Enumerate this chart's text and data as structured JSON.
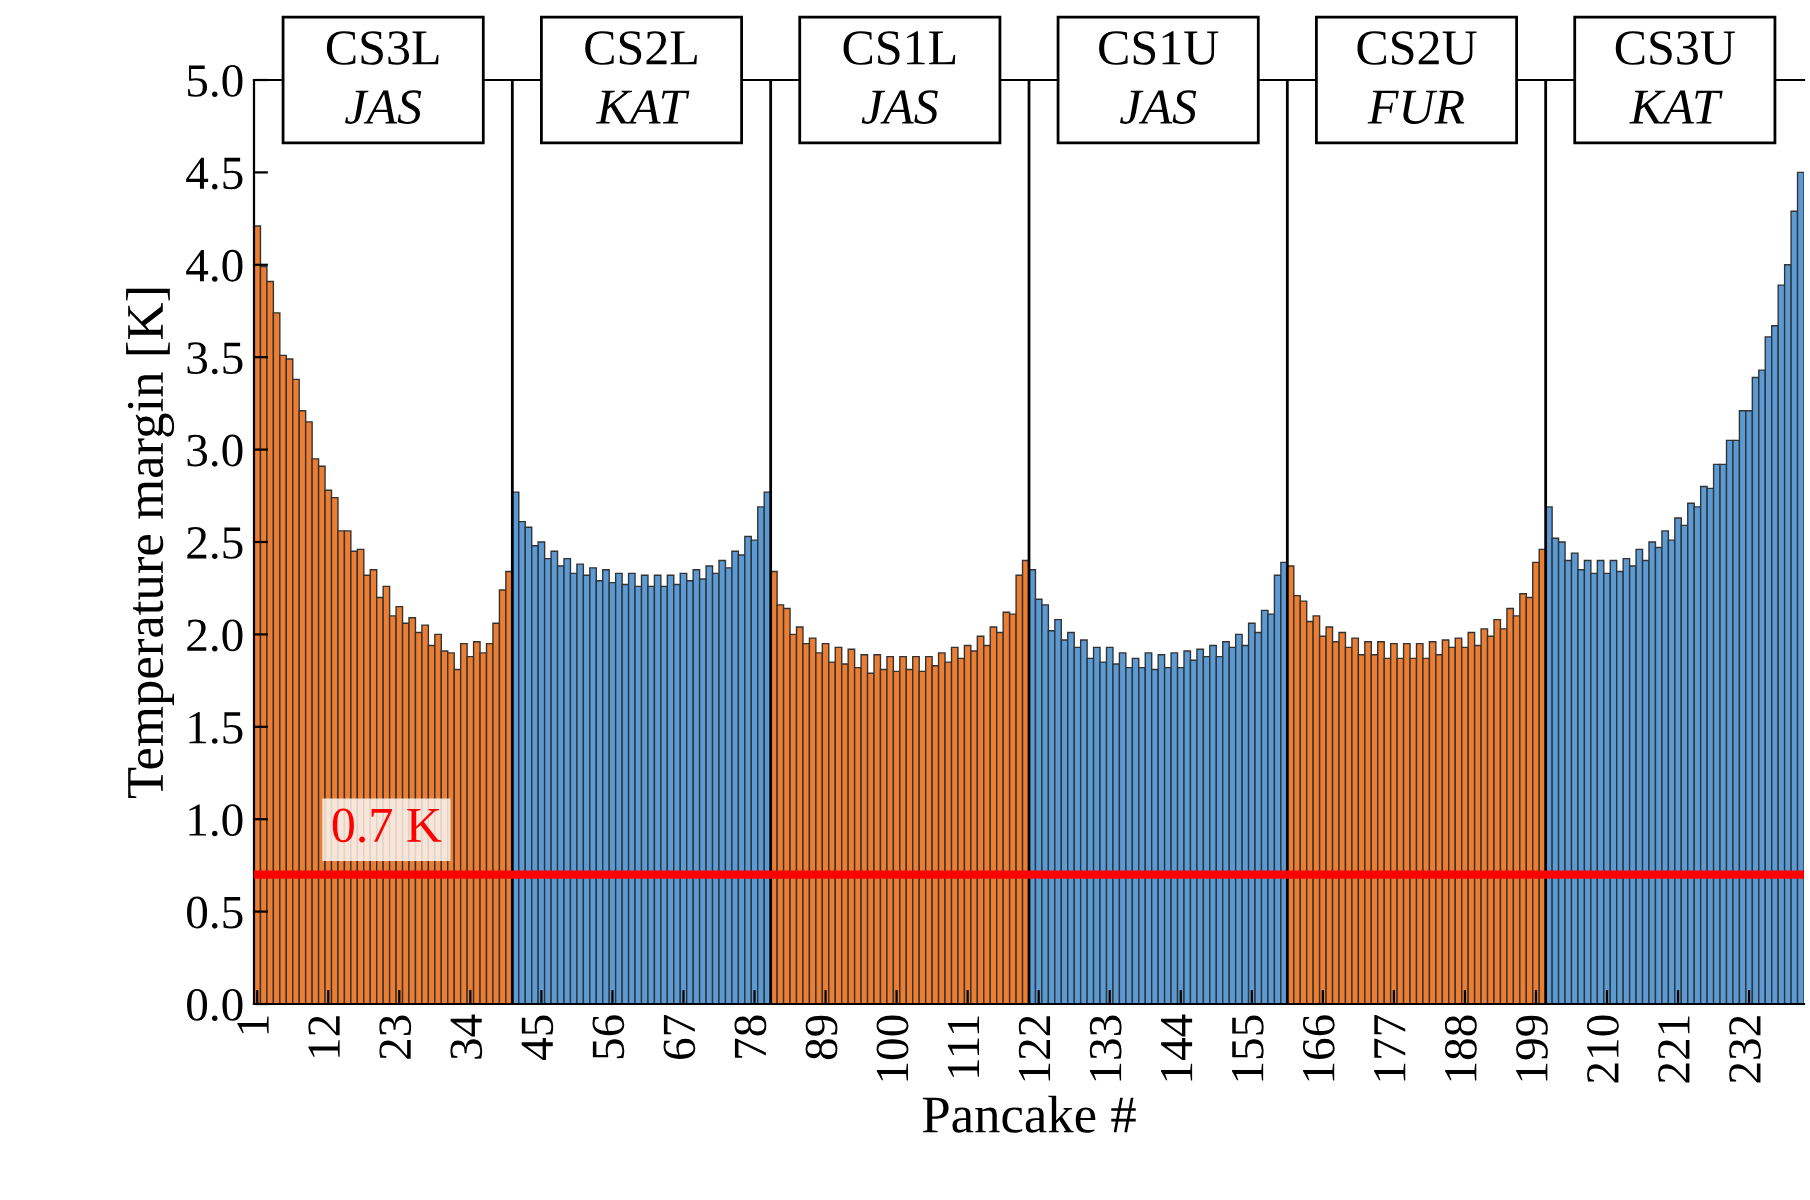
{
  "chart_data": {
    "type": "bar",
    "xlabel": "Pancake #",
    "ylabel": "Temperature margin [K]",
    "categories": [
      "1",
      null,
      null,
      null,
      null,
      null,
      null,
      null,
      null,
      null,
      null,
      "12",
      null,
      null,
      null,
      null,
      null,
      null,
      null,
      null,
      null,
      null,
      "23",
      null,
      null,
      null,
      null,
      null,
      null,
      null,
      null,
      null,
      null,
      "34",
      null,
      null,
      null,
      null,
      null,
      null,
      null,
      null,
      null,
      null,
      "45",
      null,
      null,
      null,
      null,
      null,
      null,
      null,
      null,
      null,
      null,
      "56",
      null,
      null,
      null,
      null,
      null,
      null,
      null,
      null,
      null,
      null,
      "67",
      null,
      null,
      null,
      null,
      null,
      null,
      null,
      null,
      null,
      null,
      "78",
      null,
      null,
      null,
      null,
      null,
      null,
      null,
      null,
      null,
      null,
      "89",
      null,
      null,
      null,
      null,
      null,
      null,
      null,
      null,
      null,
      null,
      "100",
      null,
      null,
      null,
      null,
      null,
      null,
      null,
      null,
      null,
      null,
      "111",
      null,
      null,
      null,
      null,
      null,
      null,
      null,
      null,
      null,
      null,
      "122",
      null,
      null,
      null,
      null,
      null,
      null,
      null,
      null,
      null,
      null,
      "133",
      null,
      null,
      null,
      null,
      null,
      null,
      null,
      null,
      null,
      null,
      "144",
      null,
      null,
      null,
      null,
      null,
      null,
      null,
      null,
      null,
      null,
      "155",
      null,
      null,
      null,
      null,
      null,
      null,
      null,
      null,
      null,
      null,
      "166",
      null,
      null,
      null,
      null,
      null,
      null,
      null,
      null,
      null,
      null,
      "177",
      null,
      null,
      null,
      null,
      null,
      null,
      null,
      null,
      null,
      null,
      "188",
      null,
      null,
      null,
      null,
      null,
      null,
      null,
      null,
      null,
      null,
      "199",
      null,
      null,
      null,
      null,
      null,
      null,
      null,
      null,
      null,
      null,
      "210",
      null,
      null,
      null,
      null,
      null,
      null,
      null,
      null,
      null,
      null,
      "221",
      null,
      null,
      null,
      null,
      null,
      null,
      null,
      null,
      null,
      null,
      "232",
      null,
      null,
      null,
      null,
      null,
      null,
      null,
      null
    ],
    "values": [
      4.21,
      3.99,
      3.91,
      3.74,
      3.51,
      3.49,
      3.38,
      3.21,
      3.15,
      2.95,
      2.91,
      2.78,
      2.74,
      2.56,
      2.56,
      2.45,
      2.46,
      2.32,
      2.35,
      2.2,
      2.26,
      2.1,
      2.15,
      2.06,
      2.09,
      2.01,
      2.05,
      1.94,
      2.0,
      1.91,
      1.9,
      1.81,
      1.95,
      1.88,
      1.96,
      1.9,
      1.95,
      2.06,
      2.24,
      2.34,
      2.77,
      2.61,
      2.58,
      2.48,
      2.5,
      2.41,
      2.45,
      2.37,
      2.41,
      2.33,
      2.38,
      2.32,
      2.36,
      2.29,
      2.35,
      2.28,
      2.33,
      2.27,
      2.33,
      2.26,
      2.32,
      2.26,
      2.32,
      2.26,
      2.32,
      2.27,
      2.33,
      2.29,
      2.35,
      2.3,
      2.37,
      2.33,
      2.4,
      2.36,
      2.45,
      2.43,
      2.53,
      2.51,
      2.69,
      2.77,
      2.34,
      2.16,
      2.14,
      2.0,
      2.04,
      1.95,
      1.98,
      1.9,
      1.95,
      1.85,
      1.93,
      1.84,
      1.92,
      1.82,
      1.89,
      1.79,
      1.89,
      1.81,
      1.88,
      1.8,
      1.88,
      1.81,
      1.88,
      1.8,
      1.88,
      1.83,
      1.9,
      1.85,
      1.93,
      1.87,
      1.94,
      1.91,
      1.99,
      1.94,
      2.04,
      2.01,
      2.12,
      2.11,
      2.32,
      2.4,
      2.35,
      2.19,
      2.16,
      2.02,
      2.08,
      1.97,
      2.01,
      1.93,
      1.97,
      1.87,
      1.93,
      1.85,
      1.93,
      1.84,
      1.9,
      1.82,
      1.87,
      1.82,
      1.9,
      1.81,
      1.89,
      1.82,
      1.9,
      1.82,
      1.91,
      1.86,
      1.92,
      1.88,
      1.94,
      1.88,
      1.96,
      1.93,
      2.0,
      1.94,
      2.06,
      2.01,
      2.13,
      2.11,
      2.32,
      2.39,
      2.37,
      2.21,
      2.18,
      2.07,
      2.1,
      1.99,
      2.04,
      1.96,
      2.01,
      1.93,
      1.98,
      1.89,
      1.96,
      1.89,
      1.96,
      1.87,
      1.95,
      1.87,
      1.95,
      1.87,
      1.95,
      1.87,
      1.96,
      1.89,
      1.97,
      1.93,
      1.98,
      1.93,
      2.01,
      1.94,
      2.03,
      1.99,
      2.08,
      2.03,
      2.14,
      2.1,
      2.22,
      2.2,
      2.39,
      2.46,
      2.69,
      2.52,
      2.5,
      2.4,
      2.44,
      2.35,
      2.4,
      2.33,
      2.4,
      2.33,
      2.4,
      2.34,
      2.41,
      2.37,
      2.46,
      2.4,
      2.5,
      2.47,
      2.56,
      2.51,
      2.63,
      2.59,
      2.71,
      2.69,
      2.8,
      2.79,
      2.92,
      2.92,
      3.05,
      3.05,
      3.21,
      3.21,
      3.39,
      3.43,
      3.61,
      3.67,
      3.89,
      4.0,
      4.29,
      4.5
    ],
    "colors": [
      "#ed7d31",
      "#ed7d31",
      "#ed7d31",
      "#ed7d31",
      "#ed7d31",
      "#ed7d31",
      "#ed7d31",
      "#ed7d31",
      "#ed7d31",
      "#ed7d31",
      "#ed7d31",
      "#ed7d31",
      "#ed7d31",
      "#ed7d31",
      "#ed7d31",
      "#ed7d31",
      "#ed7d31",
      "#ed7d31",
      "#ed7d31",
      "#ed7d31",
      "#ed7d31",
      "#ed7d31",
      "#ed7d31",
      "#ed7d31",
      "#ed7d31",
      "#ed7d31",
      "#ed7d31",
      "#ed7d31",
      "#ed7d31",
      "#ed7d31",
      "#ed7d31",
      "#ed7d31",
      "#ed7d31",
      "#ed7d31",
      "#ed7d31",
      "#ed7d31",
      "#ed7d31",
      "#ed7d31",
      "#ed7d31",
      "#ed7d31",
      "#5b9bd5",
      "#5b9bd5",
      "#5b9bd5",
      "#5b9bd5",
      "#5b9bd5",
      "#5b9bd5",
      "#5b9bd5",
      "#5b9bd5",
      "#5b9bd5",
      "#5b9bd5",
      "#5b9bd5",
      "#5b9bd5",
      "#5b9bd5",
      "#5b9bd5",
      "#5b9bd5",
      "#5b9bd5",
      "#5b9bd5",
      "#5b9bd5",
      "#5b9bd5",
      "#5b9bd5",
      "#5b9bd5",
      "#5b9bd5",
      "#5b9bd5",
      "#5b9bd5",
      "#5b9bd5",
      "#5b9bd5",
      "#5b9bd5",
      "#5b9bd5",
      "#5b9bd5",
      "#5b9bd5",
      "#5b9bd5",
      "#5b9bd5",
      "#5b9bd5",
      "#5b9bd5",
      "#5b9bd5",
      "#5b9bd5",
      "#5b9bd5",
      "#5b9bd5",
      "#5b9bd5",
      "#5b9bd5",
      "#ed7d31",
      "#ed7d31",
      "#ed7d31",
      "#ed7d31",
      "#ed7d31",
      "#ed7d31",
      "#ed7d31",
      "#ed7d31",
      "#ed7d31",
      "#ed7d31",
      "#ed7d31",
      "#ed7d31",
      "#ed7d31",
      "#ed7d31",
      "#ed7d31",
      "#ed7d31",
      "#ed7d31",
      "#ed7d31",
      "#ed7d31",
      "#ed7d31",
      "#ed7d31",
      "#ed7d31",
      "#ed7d31",
      "#ed7d31",
      "#ed7d31",
      "#ed7d31",
      "#ed7d31",
      "#ed7d31",
      "#ed7d31",
      "#ed7d31",
      "#ed7d31",
      "#ed7d31",
      "#ed7d31",
      "#ed7d31",
      "#ed7d31",
      "#ed7d31",
      "#ed7d31",
      "#ed7d31",
      "#ed7d31",
      "#ed7d31",
      "#5b9bd5",
      "#5b9bd5",
      "#5b9bd5",
      "#5b9bd5",
      "#5b9bd5",
      "#5b9bd5",
      "#5b9bd5",
      "#5b9bd5",
      "#5b9bd5",
      "#5b9bd5",
      "#5b9bd5",
      "#5b9bd5",
      "#5b9bd5",
      "#5b9bd5",
      "#5b9bd5",
      "#5b9bd5",
      "#5b9bd5",
      "#5b9bd5",
      "#5b9bd5",
      "#5b9bd5",
      "#5b9bd5",
      "#5b9bd5",
      "#5b9bd5",
      "#5b9bd5",
      "#5b9bd5",
      "#5b9bd5",
      "#5b9bd5",
      "#5b9bd5",
      "#5b9bd5",
      "#5b9bd5",
      "#5b9bd5",
      "#5b9bd5",
      "#5b9bd5",
      "#5b9bd5",
      "#5b9bd5",
      "#5b9bd5",
      "#5b9bd5",
      "#5b9bd5",
      "#5b9bd5",
      "#5b9bd5",
      "#ed7d31",
      "#ed7d31",
      "#ed7d31",
      "#ed7d31",
      "#ed7d31",
      "#ed7d31",
      "#ed7d31",
      "#ed7d31",
      "#ed7d31",
      "#ed7d31",
      "#ed7d31",
      "#ed7d31",
      "#ed7d31",
      "#ed7d31",
      "#ed7d31",
      "#ed7d31",
      "#ed7d31",
      "#ed7d31",
      "#ed7d31",
      "#ed7d31",
      "#ed7d31",
      "#ed7d31",
      "#ed7d31",
      "#ed7d31",
      "#ed7d31",
      "#ed7d31",
      "#ed7d31",
      "#ed7d31",
      "#ed7d31",
      "#ed7d31",
      "#ed7d31",
      "#ed7d31",
      "#ed7d31",
      "#ed7d31",
      "#ed7d31",
      "#ed7d31",
      "#ed7d31",
      "#ed7d31",
      "#ed7d31",
      "#ed7d31",
      "#5b9bd5",
      "#5b9bd5",
      "#5b9bd5",
      "#5b9bd5",
      "#5b9bd5",
      "#5b9bd5",
      "#5b9bd5",
      "#5b9bd5",
      "#5b9bd5",
      "#5b9bd5",
      "#5b9bd5",
      "#5b9bd5",
      "#5b9bd5",
      "#5b9bd5",
      "#5b9bd5",
      "#5b9bd5",
      "#5b9bd5",
      "#5b9bd5",
      "#5b9bd5",
      "#5b9bd5",
      "#5b9bd5",
      "#5b9bd5",
      "#5b9bd5",
      "#5b9bd5",
      "#5b9bd5",
      "#5b9bd5",
      "#5b9bd5",
      "#5b9bd5",
      "#5b9bd5",
      "#5b9bd5",
      "#5b9bd5",
      "#5b9bd5",
      "#5b9bd5",
      "#5b9bd5",
      "#5b9bd5",
      "#5b9bd5",
      "#5b9bd5",
      "#5b9bd5",
      "#5b9bd5",
      "#5b9bd5"
    ],
    "ylim": [
      0,
      5
    ],
    "yticks": [
      {
        "value": 0,
        "label": "0.0"
      },
      0.5,
      {
        "value": 1,
        "label": "1.0"
      },
      1.5,
      {
        "value": 2,
        "label": "2.0"
      },
      2.5,
      {
        "value": 3,
        "label": "3.0"
      },
      3.5,
      {
        "value": 4,
        "label": "4.0"
      },
      4.5,
      {
        "value": 5,
        "label": "5.0"
      }
    ],
    "ref_lines": [
      {
        "axis": "y",
        "value": 0.7,
        "label": "0.7 K",
        "color": "#ff0000"
      }
    ],
    "annotations": [
      "CS3L\nJAS",
      "CS2L\nKAT",
      "CS1L\nJAS",
      "CS1U\nJAS",
      "CS2U\nFUR",
      "CS3U\nKAT"
    ],
    "grid": false
  }
}
